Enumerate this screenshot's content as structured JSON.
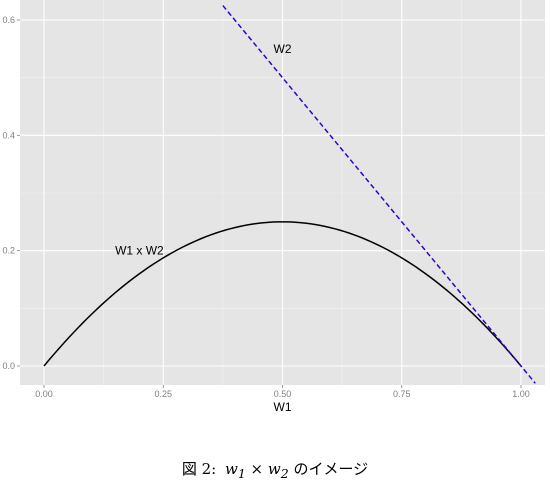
{
  "chart_data": {
    "type": "line",
    "xlabel": "W1",
    "ylabel": "",
    "xlim": [
      -0.05,
      1.03
    ],
    "ylim": [
      -0.025,
      0.625
    ],
    "x_ticks": [
      0.0,
      0.25,
      0.5,
      0.75,
      1.0
    ],
    "x_tick_labels": [
      "0.00",
      "0.25",
      "0.50",
      "0.75",
      "1.00"
    ],
    "y_ticks": [
      0.0,
      0.2,
      0.4,
      0.6
    ],
    "y_tick_labels": [
      "0.0",
      "0.2",
      "0.4",
      "0.6"
    ],
    "grid": true,
    "series": [
      {
        "name": "W1 x W2",
        "formula": "W1*(1-W1)",
        "style": "solid",
        "color": "#000000",
        "x": [
          0.0,
          0.05,
          0.1,
          0.15,
          0.2,
          0.25,
          0.3,
          0.35,
          0.4,
          0.45,
          0.5,
          0.55,
          0.6,
          0.65,
          0.7,
          0.75,
          0.8,
          0.85,
          0.9,
          0.95,
          1.0
        ],
        "y": [
          0.0,
          0.0475,
          0.09,
          0.1275,
          0.16,
          0.1875,
          0.21,
          0.2275,
          0.24,
          0.2475,
          0.25,
          0.2475,
          0.24,
          0.2275,
          0.21,
          0.1875,
          0.16,
          0.1275,
          0.09,
          0.0475,
          0.0
        ]
      },
      {
        "name": "W2",
        "formula": "1-W1",
        "style": "dashed",
        "color": "#3300cc",
        "x": [
          0.375,
          1.03
        ],
        "y": [
          0.625,
          -0.03
        ]
      }
    ],
    "annotations": [
      {
        "text": "W2",
        "x": 0.5,
        "y": 0.55
      },
      {
        "text": "W1 x W2",
        "x": 0.2,
        "y": 0.2
      }
    ],
    "colors": {
      "panel_bg": "#e5e5e5",
      "grid": "#ffffff",
      "tick_text": "#7f7f7f"
    }
  },
  "caption": {
    "label": "図 2:",
    "w1": "w",
    "w1_sub": "1",
    "times": "×",
    "w2": "w",
    "w2_sub": "2",
    "suffix": "のイメージ"
  }
}
